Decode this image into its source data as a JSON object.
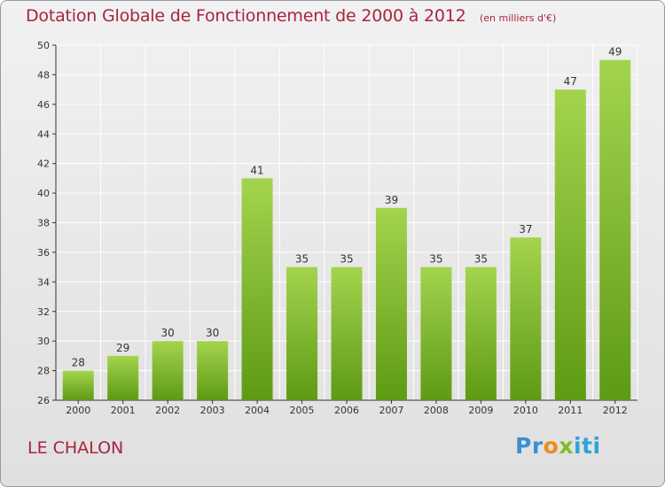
{
  "header": {
    "title": "Dotation Globale de Fonctionnement de 2000 à 2012",
    "unit_note": "(en milliers d'€)"
  },
  "footer": {
    "commune": "LE CHALON",
    "logo_text": "Proxiti"
  },
  "colors": {
    "title": "#a8243f",
    "bar_light": "#a4d44e",
    "bar_dark": "#5e9a14",
    "grid": "#ffffff",
    "axis": "#333333"
  },
  "chart_data": {
    "type": "bar",
    "title": "Dotation Globale de Fonctionnement de 2000 à 2012",
    "xlabel": "",
    "ylabel": "",
    "categories": [
      "2000",
      "2001",
      "2002",
      "2003",
      "2004",
      "2005",
      "2006",
      "2007",
      "2008",
      "2009",
      "2010",
      "2011",
      "2012"
    ],
    "values": [
      28,
      29,
      30,
      30,
      41,
      35,
      35,
      39,
      35,
      35,
      37,
      47,
      49
    ],
    "ylim": [
      26,
      50
    ],
    "yticks": [
      26,
      28,
      30,
      32,
      34,
      36,
      38,
      40,
      42,
      44,
      46,
      48,
      50
    ],
    "grid": true,
    "legend": "none"
  }
}
